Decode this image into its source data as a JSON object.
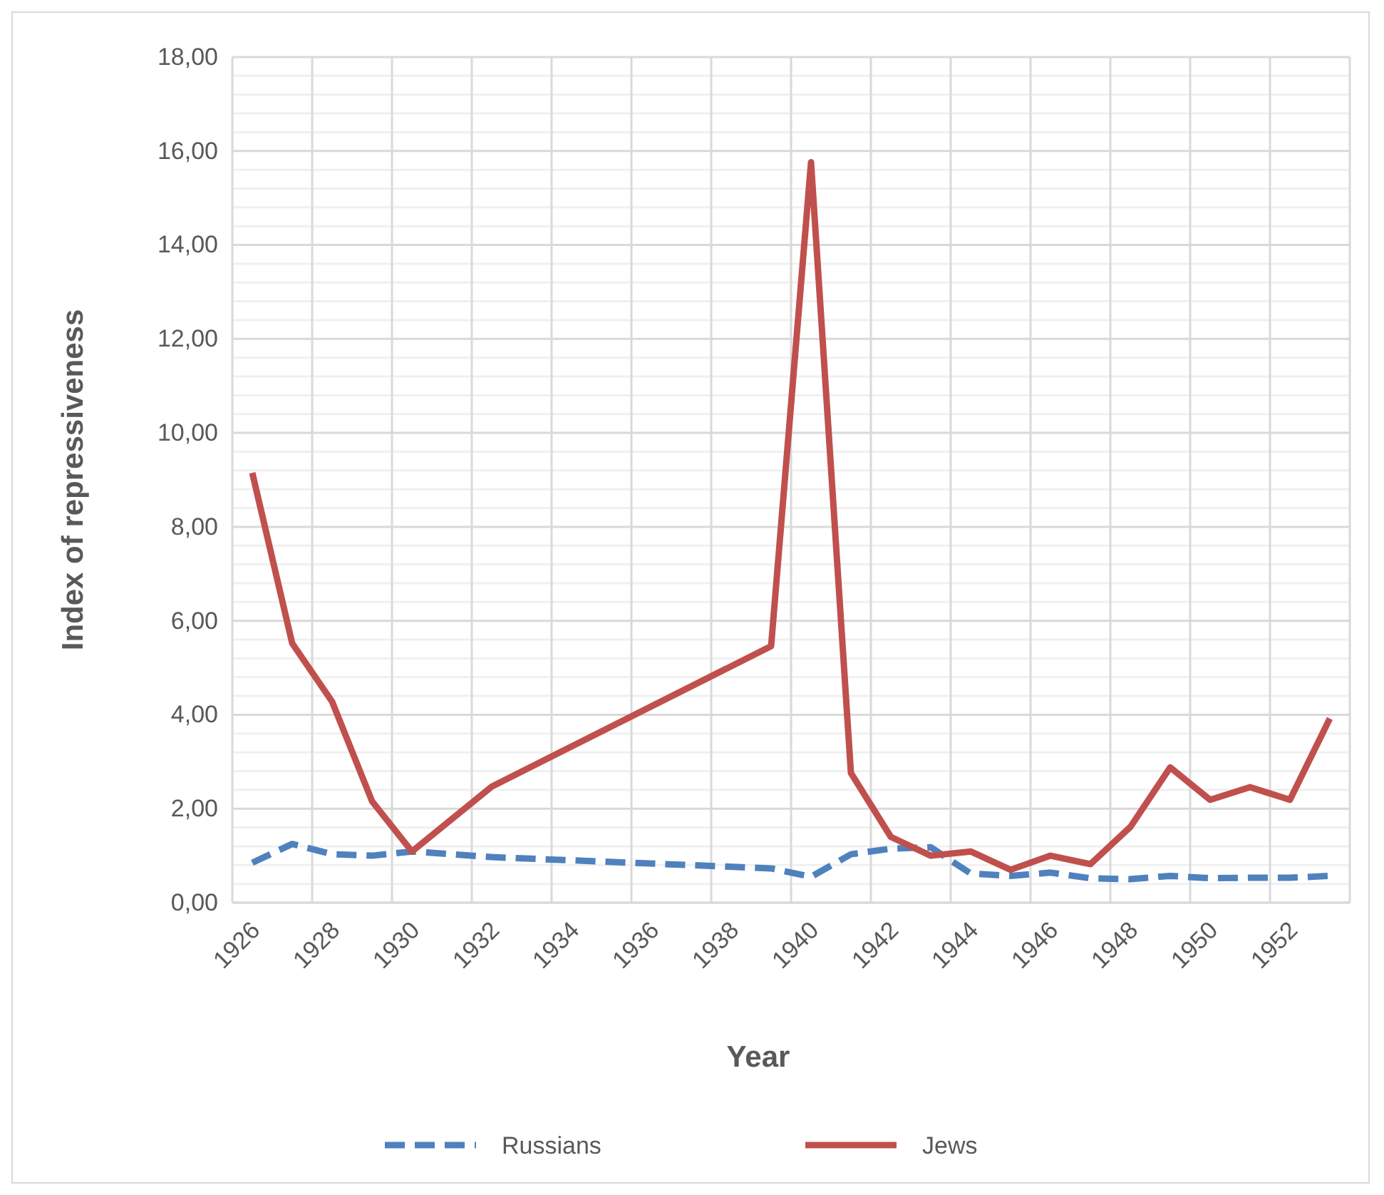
{
  "chart_data": {
    "type": "line",
    "xlabel": "Year",
    "ylabel": "Index of repressiveness",
    "categories": [
      "1926",
      null,
      "1928",
      null,
      "1930",
      null,
      "1932",
      null,
      "1934",
      null,
      "1936",
      null,
      "1938",
      null,
      "1940",
      null,
      "1942",
      null,
      "1944",
      null,
      "1946",
      null,
      "1948",
      null,
      "1950",
      null,
      "1952",
      null
    ],
    "series": [
      {
        "name": "Russians",
        "color": "#4f81bd",
        "line_style": "dashed",
        "values": [
          0.85,
          1.25,
          1.03,
          1.0,
          1.09,
          null,
          0.97,
          null,
          null,
          null,
          null,
          null,
          null,
          0.73,
          0.55,
          1.03,
          1.15,
          1.18,
          0.62,
          0.57,
          0.64,
          0.52,
          0.5,
          0.57,
          0.52,
          0.53,
          0.53,
          0.57
        ]
      },
      {
        "name": "Jews",
        "color": "#c0504d",
        "line_style": "solid",
        "values": [
          9.15,
          5.52,
          4.28,
          2.16,
          1.09,
          null,
          2.47,
          null,
          null,
          null,
          null,
          null,
          null,
          5.46,
          15.76,
          2.76,
          1.4,
          1.0,
          1.09,
          0.7,
          1.0,
          0.82,
          1.61,
          2.88,
          2.19,
          2.46,
          2.19,
          3.92
        ]
      }
    ],
    "ylim": [
      0,
      18
    ],
    "yticks": [
      {
        "value": 0,
        "label": "0,00"
      },
      {
        "value": 0.4,
        "label": null
      },
      {
        "value": 0.8,
        "label": null
      },
      {
        "value": 1.2,
        "label": null
      },
      {
        "value": 1.6,
        "label": null
      },
      {
        "value": 2,
        "label": "2,00"
      },
      {
        "value": 2.4,
        "label": null
      },
      {
        "value": 2.8,
        "label": null
      },
      {
        "value": 3.2,
        "label": null
      },
      {
        "value": 3.6,
        "label": null
      },
      {
        "value": 4,
        "label": "4,00"
      },
      {
        "value": 4.4,
        "label": null
      },
      {
        "value": 4.8,
        "label": null
      },
      {
        "value": 5.2,
        "label": null
      },
      {
        "value": 5.6,
        "label": null
      },
      {
        "value": 6,
        "label": "6,00"
      },
      {
        "value": 6.4,
        "label": null
      },
      {
        "value": 6.8,
        "label": null
      },
      {
        "value": 7.2,
        "label": null
      },
      {
        "value": 7.6,
        "label": null
      },
      {
        "value": 8,
        "label": "8,00"
      },
      {
        "value": 8.4,
        "label": null
      },
      {
        "value": 8.8,
        "label": null
      },
      {
        "value": 9.2,
        "label": null
      },
      {
        "value": 9.6,
        "label": null
      },
      {
        "value": 10,
        "label": "10,00"
      },
      {
        "value": 10.4,
        "label": null
      },
      {
        "value": 10.8,
        "label": null
      },
      {
        "value": 11.2,
        "label": null
      },
      {
        "value": 11.6,
        "label": null
      },
      {
        "value": 12,
        "label": "12,00"
      },
      {
        "value": 12.4,
        "label": null
      },
      {
        "value": 12.8,
        "label": null
      },
      {
        "value": 13.2,
        "label": null
      },
      {
        "value": 13.6,
        "label": null
      },
      {
        "value": 14,
        "label": "14,00"
      },
      {
        "value": 14.4,
        "label": null
      },
      {
        "value": 14.8,
        "label": null
      },
      {
        "value": 15.2,
        "label": null
      },
      {
        "value": 15.6,
        "label": null
      },
      {
        "value": 16,
        "label": "16,00"
      },
      {
        "value": 16.4,
        "label": null
      },
      {
        "value": 16.8,
        "label": null
      },
      {
        "value": 17.2,
        "label": null
      },
      {
        "value": 17.6,
        "label": null
      },
      {
        "value": 18,
        "label": "18,00"
      }
    ],
    "grid": true,
    "legend": "bottom",
    "marker": "none"
  }
}
